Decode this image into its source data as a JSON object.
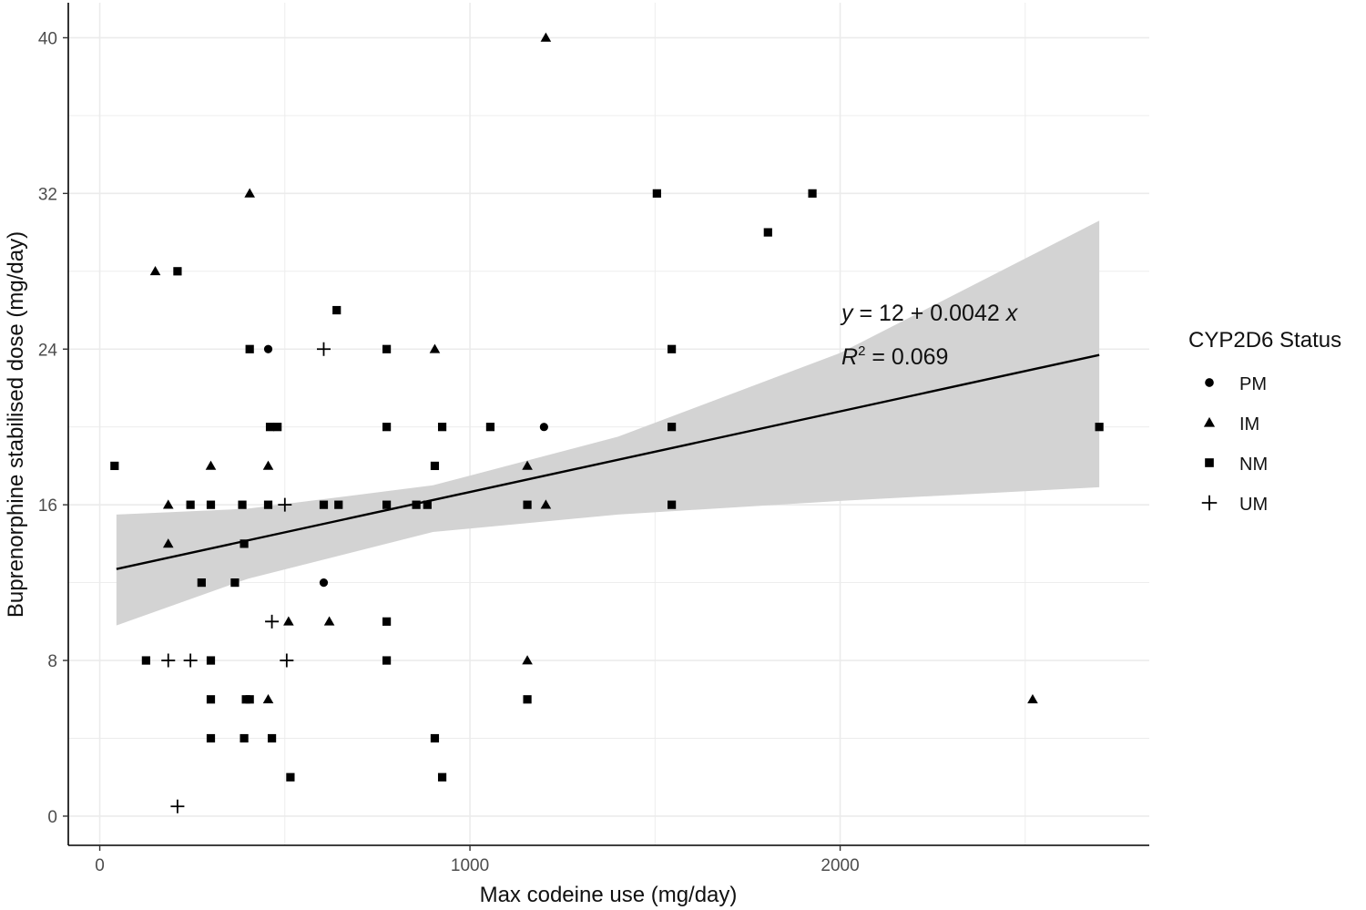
{
  "chart_data": {
    "type": "scatter",
    "xlabel": "Max codeine use (mg/day)",
    "ylabel": "Buprenorphine stabilised dose (mg/day)",
    "xlim": [
      -85,
      2835
    ],
    "ylim": [
      -1.5,
      41.8
    ],
    "x_ticks": [
      0,
      1000,
      2000
    ],
    "x_tick_labels": [
      "0",
      "1000",
      "2000"
    ],
    "y_ticks": [
      0,
      8,
      16,
      24,
      32,
      40
    ],
    "y_tick_labels": [
      "0",
      "8",
      "16",
      "24",
      "32",
      "40"
    ],
    "grid": true,
    "legend": {
      "title": "CYP2D6 Status",
      "position": "right",
      "entries": [
        {
          "key": "PM",
          "label": "PM",
          "shape": "circle"
        },
        {
          "key": "IM",
          "label": "IM",
          "shape": "triangle"
        },
        {
          "key": "NM",
          "label": "NM",
          "shape": "square"
        },
        {
          "key": "UM",
          "label": "UM",
          "shape": "plus"
        }
      ]
    },
    "annotation": {
      "equation_y": "y",
      "equation_rest": " = 12 + 0.0042 ",
      "equation_x": "x",
      "r2_label": "R",
      "r2_sup": "2",
      "r2_rest": " = 0.069"
    },
    "regression": {
      "intercept": 12,
      "slope": 0.0042,
      "x_range": [
        45,
        2700
      ],
      "line_start": [
        45,
        12.7
      ],
      "line_end": [
        2700,
        23.7
      ],
      "ci_lower": [
        [
          45,
          9.8
        ],
        [
          400,
          12.2
        ],
        [
          900,
          14.6
        ],
        [
          1400,
          15.5
        ],
        [
          2000,
          16.2
        ],
        [
          2700,
          16.9
        ]
      ],
      "ci_upper": [
        [
          45,
          15.5
        ],
        [
          400,
          15.8
        ],
        [
          900,
          17.0
        ],
        [
          1400,
          19.5
        ],
        [
          2000,
          23.8
        ],
        [
          2700,
          30.6
        ]
      ]
    },
    "series": [
      {
        "name": "PM",
        "points": [
          [
            455,
            24
          ],
          [
            605,
            12
          ],
          [
            1200,
            20
          ]
        ]
      },
      {
        "name": "IM",
        "points": [
          [
            150,
            28
          ],
          [
            185,
            16
          ],
          [
            185,
            14
          ],
          [
            300,
            18
          ],
          [
            405,
            32
          ],
          [
            455,
            18
          ],
          [
            455,
            6
          ],
          [
            510,
            10
          ],
          [
            620,
            10
          ],
          [
            905,
            24
          ],
          [
            1155,
            18
          ],
          [
            1155,
            8
          ],
          [
            1205,
            16
          ],
          [
            1205,
            40
          ],
          [
            2520,
            6
          ]
        ]
      },
      {
        "name": "NM",
        "points": [
          [
            40,
            18
          ],
          [
            125,
            8
          ],
          [
            210,
            28
          ],
          [
            245,
            16
          ],
          [
            275,
            12
          ],
          [
            300,
            16
          ],
          [
            300,
            8
          ],
          [
            300,
            6
          ],
          [
            300,
            4
          ],
          [
            365,
            12
          ],
          [
            385,
            16
          ],
          [
            390,
            14
          ],
          [
            390,
            4
          ],
          [
            395,
            6
          ],
          [
            405,
            24
          ],
          [
            405,
            6
          ],
          [
            455,
            16
          ],
          [
            460,
            20
          ],
          [
            465,
            4
          ],
          [
            480,
            20
          ],
          [
            515,
            2
          ],
          [
            605,
            16
          ],
          [
            640,
            26
          ],
          [
            645,
            16
          ],
          [
            775,
            24
          ],
          [
            775,
            20
          ],
          [
            775,
            16
          ],
          [
            775,
            10
          ],
          [
            775,
            8
          ],
          [
            855,
            16
          ],
          [
            885,
            16
          ],
          [
            905,
            18
          ],
          [
            905,
            4
          ],
          [
            925,
            20
          ],
          [
            925,
            2
          ],
          [
            1055,
            20
          ],
          [
            1155,
            16
          ],
          [
            1155,
            6
          ],
          [
            1505,
            32
          ],
          [
            1545,
            24
          ],
          [
            1545,
            20
          ],
          [
            1545,
            16
          ],
          [
            1805,
            30
          ],
          [
            1925,
            32
          ],
          [
            2700,
            20
          ]
        ]
      },
      {
        "name": "UM",
        "points": [
          [
            185,
            8
          ],
          [
            210,
            0.5
          ],
          [
            245,
            8
          ],
          [
            465,
            10
          ],
          [
            500,
            16
          ],
          [
            505,
            8
          ],
          [
            605,
            24
          ]
        ]
      }
    ]
  }
}
